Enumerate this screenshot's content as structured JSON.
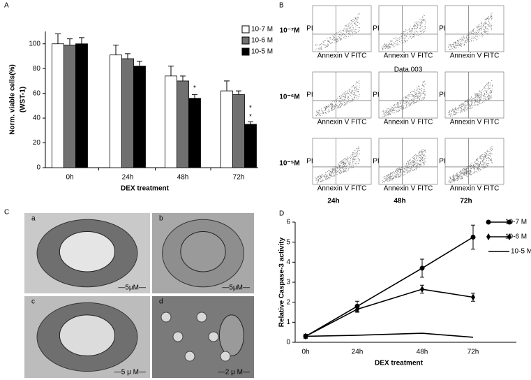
{
  "panel_labels": [
    "A",
    "B",
    "C",
    "D"
  ],
  "chart_data": [
    {
      "type": "bar",
      "ylabel": [
        "Norm. viable cells(%)",
        "(WST-1)"
      ],
      "xlabel": "DEX   treatment",
      "categories": [
        "0h",
        "24h",
        "48h",
        "72h"
      ],
      "series": [
        {
          "name": "10-7 M",
          "color": "#ffffff",
          "values": [
            100,
            91,
            74,
            62
          ],
          "errors": [
            8,
            8,
            8,
            8
          ]
        },
        {
          "name": "10-6 M",
          "color": "#707070",
          "values": [
            99,
            88,
            70,
            59
          ],
          "errors": [
            5,
            4,
            4,
            3
          ]
        },
        {
          "name": "10-5 M",
          "color": "#000000",
          "values": [
            100,
            82,
            56,
            35
          ],
          "errors": [
            5,
            4,
            3,
            2
          ]
        }
      ],
      "ylim": [
        0,
        110
      ],
      "yticks": [
        0,
        20,
        40,
        60,
        80,
        100
      ],
      "annotations": [
        "*",
        "*",
        "*"
      ],
      "legend": "upper right"
    },
    {
      "type": "line",
      "ylabel": "Relative Caspase-3 activity",
      "xlabel": "DEX   treatment",
      "categories": [
        "0h",
        "24h",
        "48h",
        "72h"
      ],
      "series": [
        {
          "name": "10-7 M",
          "color": "#000000",
          "marker": "circle",
          "values": [
            0.3,
            1.8,
            3.7,
            5.25
          ],
          "errors": [
            0.1,
            0.25,
            0.45,
            0.6
          ]
        },
        {
          "name": "10-6 M",
          "color": "#000000",
          "marker": "diamond",
          "values": [
            0.3,
            1.65,
            2.65,
            2.25
          ],
          "errors": [
            0.1,
            0.15,
            0.2,
            0.2
          ]
        },
        {
          "name": "10-5 M",
          "color": "#000000",
          "marker": "none",
          "values": [
            0.3,
            0.35,
            0.45,
            0.25
          ]
        }
      ],
      "ylim": [
        0,
        6
      ],
      "yticks": [
        0,
        1,
        2,
        3,
        4,
        5,
        6
      ],
      "legend": "upper right"
    }
  ],
  "panel_b": {
    "rows": [
      "10⁻⁷M",
      "10⁻⁶M",
      "10⁻⁵M"
    ],
    "columns": [
      "24h",
      "48h",
      "72h"
    ],
    "x_axis": "Annexin V FITC",
    "y_axis": "PI",
    "inset_title": "Data.003"
  },
  "panel_c": {
    "images": [
      {
        "label": "a",
        "scale": "—5μM—"
      },
      {
        "label": "b",
        "scale": "—5μM—"
      },
      {
        "label": "c",
        "scale": "—5 μ M—"
      },
      {
        "label": "d",
        "scale": "—2 μ M—"
      }
    ]
  }
}
